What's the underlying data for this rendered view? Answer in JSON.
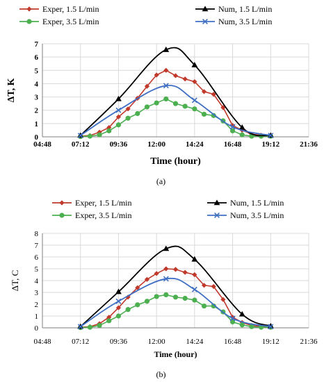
{
  "chart_data": [
    {
      "id": "a",
      "type": "line",
      "caption": "(a)",
      "xlabel": "Time (hour)",
      "ylabel": "ΔT, K",
      "x_unit": "hour",
      "xlim": [
        "04:48",
        "21:36"
      ],
      "ylim": [
        0,
        7
      ],
      "yticks": [
        0,
        1,
        2,
        3,
        4,
        5,
        6,
        7
      ],
      "xticks": [
        "04:48",
        "07:12",
        "09:36",
        "12:00",
        "14:24",
        "16:48",
        "19:12",
        "21:36"
      ],
      "grid": true,
      "legend_position": "top",
      "series": [
        {
          "name": "Exper, 1.5 L/min",
          "color": "#C0392B",
          "marker": "diamond",
          "smooth": false,
          "x": [
            "07:12",
            "07:48",
            "08:24",
            "09:00",
            "09:36",
            "10:12",
            "10:48",
            "11:24",
            "12:00",
            "12:36",
            "13:12",
            "13:48",
            "14:24",
            "15:00",
            "15:36",
            "16:12",
            "16:48",
            "17:24",
            "18:00",
            "18:36",
            "19:12"
          ],
          "y": [
            0.05,
            0.1,
            0.35,
            0.7,
            1.5,
            2.1,
            2.9,
            3.8,
            4.65,
            5.0,
            4.6,
            4.35,
            4.15,
            3.4,
            3.2,
            2.2,
            0.85,
            0.5,
            0.2,
            0.12,
            0.1
          ]
        },
        {
          "name": "Exper, 3.5 L/min",
          "color": "#4CAF50",
          "marker": "circle",
          "smooth": false,
          "x": [
            "07:12",
            "07:48",
            "08:24",
            "09:00",
            "09:36",
            "10:12",
            "10:48",
            "11:24",
            "12:00",
            "12:36",
            "13:12",
            "13:48",
            "14:24",
            "15:00",
            "15:36",
            "16:12",
            "16:48",
            "17:24",
            "18:00",
            "18:36",
            "19:12"
          ],
          "y": [
            0.02,
            0.05,
            0.15,
            0.45,
            0.9,
            1.4,
            1.75,
            2.25,
            2.55,
            2.85,
            2.5,
            2.3,
            2.1,
            1.7,
            1.6,
            1.2,
            0.45,
            0.15,
            0.05,
            0.05,
            0.05
          ]
        },
        {
          "name": "Num, 1.5 L/min",
          "color": "#000000",
          "marker": "triangle",
          "smooth": true,
          "x": [
            "07:12",
            "09:36",
            "12:36",
            "14:24",
            "17:24",
            "19:12"
          ],
          "y": [
            0.1,
            2.85,
            6.55,
            5.4,
            0.7,
            0.1
          ]
        },
        {
          "name": "Num, 3.5 L/min",
          "color": "#3F6FC4",
          "marker": "x",
          "smooth": true,
          "x": [
            "07:12",
            "09:36",
            "12:36",
            "14:24",
            "16:48",
            "19:12"
          ],
          "y": [
            0.1,
            2.0,
            3.85,
            2.75,
            0.75,
            0.1
          ]
        }
      ]
    },
    {
      "id": "b",
      "type": "line",
      "caption": "(b)",
      "xlabel": "Time (hour)",
      "ylabel": "ΔT, C",
      "x_unit": "hour",
      "xlim": [
        "04:48",
        "21:36"
      ],
      "ylim": [
        0,
        8
      ],
      "yticks": [
        0,
        1,
        2,
        3,
        4,
        5,
        6,
        7,
        8
      ],
      "xticks": [
        "04:48",
        "07:12",
        "09:36",
        "12:00",
        "14:24",
        "16:48",
        "19:12",
        "21:36"
      ],
      "grid": true,
      "legend_position": "top",
      "series": [
        {
          "name": "Exper, 1.5 L/min",
          "color": "#C0392B",
          "marker": "diamond",
          "smooth": false,
          "x": [
            "07:12",
            "07:48",
            "08:24",
            "09:00",
            "09:36",
            "10:12",
            "10:48",
            "11:24",
            "12:00",
            "12:36",
            "13:12",
            "13:48",
            "14:24",
            "15:00",
            "15:36",
            "16:12",
            "16:48",
            "17:24",
            "18:00",
            "18:36",
            "19:12"
          ],
          "y": [
            0.05,
            0.1,
            0.35,
            0.9,
            1.7,
            2.6,
            3.4,
            4.1,
            4.6,
            5.0,
            4.95,
            4.7,
            4.5,
            3.6,
            3.5,
            2.4,
            0.9,
            0.45,
            0.2,
            0.12,
            0.1
          ]
        },
        {
          "name": "Exper, 3.5 L/min",
          "color": "#4CAF50",
          "marker": "circle",
          "smooth": false,
          "x": [
            "07:12",
            "07:48",
            "08:24",
            "09:00",
            "09:36",
            "10:12",
            "10:48",
            "11:24",
            "12:00",
            "12:36",
            "13:12",
            "13:48",
            "14:24",
            "15:00",
            "15:36",
            "16:12",
            "16:48",
            "17:24",
            "18:00",
            "18:36",
            "19:12"
          ],
          "y": [
            0.02,
            0.05,
            0.2,
            0.6,
            1.0,
            1.55,
            1.95,
            2.25,
            2.65,
            2.8,
            2.6,
            2.5,
            2.35,
            1.85,
            1.85,
            1.35,
            0.5,
            0.25,
            0.1,
            0.05,
            0.05
          ]
        },
        {
          "name": "Num, 1.5 L/min",
          "color": "#000000",
          "marker": "triangle",
          "smooth": true,
          "x": [
            "07:12",
            "09:36",
            "12:36",
            "14:24",
            "17:24",
            "19:12"
          ],
          "y": [
            0.1,
            3.05,
            6.7,
            5.8,
            1.15,
            0.15
          ]
        },
        {
          "name": "Num, 3.5 L/min",
          "color": "#3F6FC4",
          "marker": "x",
          "smooth": true,
          "x": [
            "07:12",
            "09:36",
            "12:36",
            "14:24",
            "16:48",
            "19:12"
          ],
          "y": [
            0.1,
            2.25,
            4.15,
            3.25,
            0.8,
            0.1
          ]
        }
      ]
    }
  ]
}
